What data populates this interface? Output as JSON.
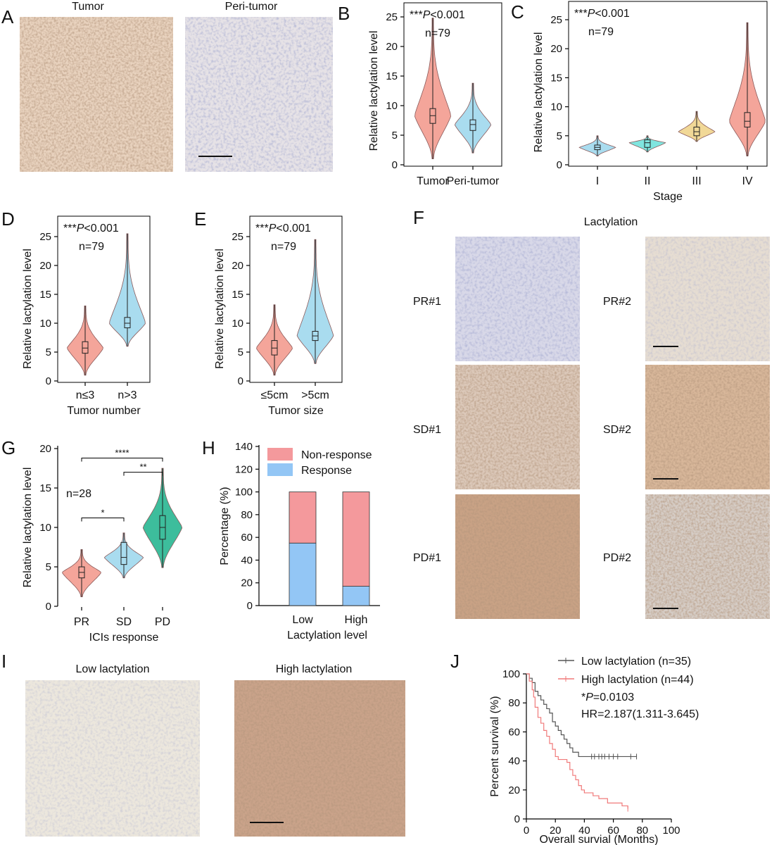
{
  "panel_letters": [
    "A",
    "B",
    "C",
    "D",
    "E",
    "F",
    "G",
    "H",
    "I",
    "J"
  ],
  "micrographs": {
    "A": [
      "Tumor",
      "Peri-tumor"
    ],
    "F": {
      "title": "Lactylation",
      "rows": [
        "PR#1",
        "PR#2",
        "SD#1",
        "SD#2",
        "PD#1",
        "PD#2"
      ]
    },
    "I": [
      "Low lactylation",
      "High lactylation"
    ]
  },
  "colors": {
    "tumor": "#f4a59a",
    "peri": "#a9dcef",
    "stage_I": "#a9dcef",
    "stage_II": "#7fe5df",
    "stage_III": "#f1d897",
    "stage_IV": "#f4a59a",
    "pd": "#3dbd9c",
    "non_response": "#f4999c",
    "response": "#93c6f5",
    "low_line": "#555555",
    "high_line": "#f07a7a"
  },
  "chart_data": [
    {
      "panel": "B",
      "type": "violin",
      "title": "",
      "annotation": "***P<0.001",
      "n_label": "n=79",
      "ylabel": "Relative lactylation level",
      "xlabel": "",
      "ylim": [
        0,
        25
      ],
      "yticks": [
        0,
        5,
        10,
        15,
        20,
        25
      ],
      "categories": [
        "Tumor",
        "Peri-tumor"
      ],
      "medians": [
        8.3,
        6.8
      ],
      "q1": [
        7.0,
        5.8
      ],
      "q3": [
        9.5,
        7.6
      ],
      "min": [
        1.0,
        2.0
      ],
      "max": [
        24.8,
        13.8
      ]
    },
    {
      "panel": "C",
      "type": "violin",
      "title": "",
      "annotation": "***P<0.001",
      "n_label": "n=79",
      "ylabel": "Relative lactylation level",
      "xlabel": "Stage",
      "ylim": [
        0,
        25
      ],
      "yticks": [
        0,
        5,
        10,
        15,
        20,
        25
      ],
      "categories": [
        "I",
        "II",
        "III",
        "IV"
      ],
      "medians": [
        3.0,
        3.8,
        5.7,
        7.5
      ],
      "q1": [
        2.6,
        3.0,
        5.0,
        6.5
      ],
      "q3": [
        3.4,
        4.3,
        6.5,
        9.0
      ],
      "min": [
        1.5,
        2.2,
        4.0,
        1.5
      ],
      "max": [
        5.0,
        5.0,
        9.2,
        24.5
      ]
    },
    {
      "panel": "D",
      "type": "violin",
      "title": "",
      "annotation": "***P<0.001",
      "n_label": "n=79",
      "ylabel": "Relative lactylation level",
      "xlabel": "Tumor number",
      "ylim": [
        0,
        25
      ],
      "yticks": [
        0,
        5,
        10,
        15,
        20,
        25
      ],
      "categories": [
        "n≤3",
        "n>3"
      ],
      "medians": [
        5.7,
        10.0
      ],
      "q1": [
        4.8,
        9.2
      ],
      "q3": [
        6.8,
        11.0
      ],
      "min": [
        1.0,
        6.0
      ],
      "max": [
        13.0,
        25.5
      ]
    },
    {
      "panel": "E",
      "type": "violin",
      "title": "",
      "annotation": "***P<0.001",
      "n_label": "n=79",
      "ylabel": "Relative lactylation level",
      "xlabel": "Tumor size",
      "ylim": [
        0,
        25
      ],
      "yticks": [
        0,
        5,
        10,
        15,
        20,
        25
      ],
      "categories": [
        "≤5cm",
        ">5cm"
      ],
      "medians": [
        5.7,
        7.8
      ],
      "q1": [
        4.5,
        7.0
      ],
      "q3": [
        7.0,
        8.6
      ],
      "min": [
        1.0,
        3.0
      ],
      "max": [
        13.2,
        24.5
      ]
    },
    {
      "panel": "G",
      "type": "violin",
      "title": "",
      "annotation": "",
      "n_label": "n=28",
      "ylabel": "Relative lactylation level",
      "xlabel": "ICIs response",
      "ylim": [
        0,
        20
      ],
      "yticks": [
        0,
        5,
        10,
        15,
        20
      ],
      "categories": [
        "PR",
        "SD",
        "PD"
      ],
      "medians": [
        4.3,
        6.2,
        10.0
      ],
      "q1": [
        3.6,
        5.3,
        8.5
      ],
      "q3": [
        5.0,
        8.1,
        11.5
      ],
      "min": [
        1.2,
        3.6,
        4.9
      ],
      "max": [
        7.2,
        9.3,
        17.5
      ],
      "significance": [
        {
          "pair": [
            "PR",
            "SD"
          ],
          "label": "*"
        },
        {
          "pair": [
            "PR",
            "PD"
          ],
          "label": "****"
        },
        {
          "pair": [
            "SD",
            "PD"
          ],
          "label": "**"
        }
      ]
    },
    {
      "panel": "H",
      "type": "bar",
      "stacked": true,
      "title": "",
      "ylabel": "Percentage (%)",
      "xlabel": "Lactylation level",
      "ylim": [
        0,
        140
      ],
      "yticks": [
        0,
        20,
        40,
        60,
        80,
        100,
        120,
        140
      ],
      "categories": [
        "Low",
        "High"
      ],
      "legend": "top-right",
      "series": [
        {
          "name": "Non-response",
          "values": [
            45,
            83
          ]
        },
        {
          "name": "Response",
          "values": [
            55,
            17
          ]
        }
      ]
    },
    {
      "panel": "J",
      "type": "line",
      "subtype": "kaplan-meier",
      "title": "",
      "ylabel": "Percent survival (%)",
      "xlabel": "Overall survial (Months)",
      "xlim": [
        0,
        100
      ],
      "ylim": [
        0,
        100
      ],
      "xticks": [
        0,
        20,
        40,
        60,
        80,
        100
      ],
      "yticks": [
        0,
        20,
        40,
        60,
        80,
        100
      ],
      "legend": "top-right",
      "annotations": [
        "*P=0.0103",
        "HR=2.187(1.311-3.645)"
      ],
      "series": [
        {
          "name": "Low lactylation (n=35)",
          "x": [
            0,
            2,
            4,
            6,
            8,
            10,
            12,
            14,
            16,
            18,
            20,
            22,
            24,
            26,
            28,
            30,
            32,
            34,
            36,
            38,
            76
          ],
          "y": [
            100,
            97,
            94,
            88,
            85,
            82,
            79,
            76,
            73,
            67,
            64,
            61,
            58,
            55,
            52,
            49,
            46,
            46,
            43,
            43,
            43
          ],
          "censor_x": [
            45,
            47,
            50,
            52,
            54,
            57,
            60,
            63,
            72,
            76
          ]
        },
        {
          "name": "High lactylation (n=44)",
          "x": [
            0,
            2,
            4,
            5,
            6,
            8,
            10,
            12,
            14,
            16,
            18,
            20,
            22,
            24,
            26,
            28,
            30,
            32,
            34,
            36,
            38,
            40,
            42,
            44,
            46,
            48,
            50,
            52,
            56,
            62,
            66,
            70
          ],
          "y": [
            100,
            95,
            89,
            84,
            77,
            70,
            66,
            61,
            57,
            52,
            48,
            43,
            41,
            41,
            41,
            39,
            34,
            30,
            27,
            23,
            20,
            18,
            18,
            18,
            16,
            16,
            14,
            14,
            11,
            11,
            9,
            7
          ],
          "censor_x": [
            70
          ]
        }
      ]
    }
  ]
}
